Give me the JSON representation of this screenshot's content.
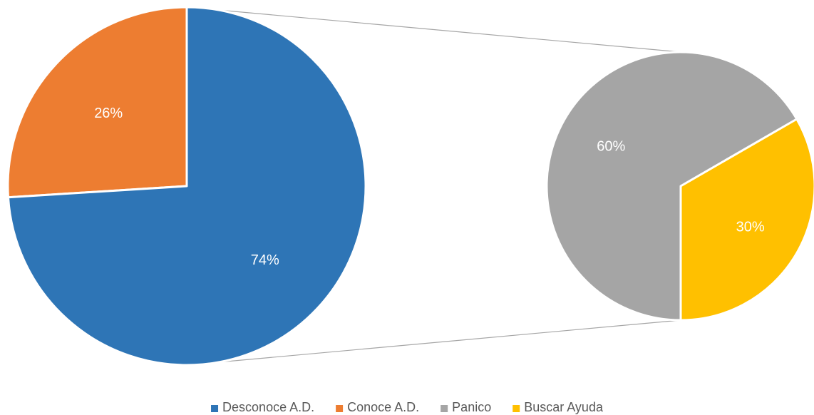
{
  "chart_data": {
    "type": "pie",
    "subtype": "pie-of-pie",
    "title": "",
    "main_pie": {
      "slices": [
        {
          "label": "Desconoce A.D.",
          "value": 74,
          "display": "74%",
          "color": "#2E75B6"
        },
        {
          "label": "Conoce A.D.",
          "value": 26,
          "display": "26%",
          "color": "#ED7D31"
        }
      ]
    },
    "secondary_pie": {
      "expands": "Conoce A.D.",
      "slices": [
        {
          "label": "Panico",
          "value": 60,
          "display": "60%",
          "color": "#A5A5A5"
        },
        {
          "label": "Buscar Ayuda",
          "value": 30,
          "display": "30%",
          "color": "#FFC000"
        }
      ]
    },
    "legend": {
      "position": "bottom",
      "entries": [
        {
          "label": "Desconoce A.D.",
          "color": "#2E75B6"
        },
        {
          "label": "Conoce A.D.",
          "color": "#ED7D31"
        },
        {
          "label": "Panico",
          "color": "#A5A5A5"
        },
        {
          "label": "Buscar Ayuda",
          "color": "#FFC000"
        }
      ]
    }
  }
}
